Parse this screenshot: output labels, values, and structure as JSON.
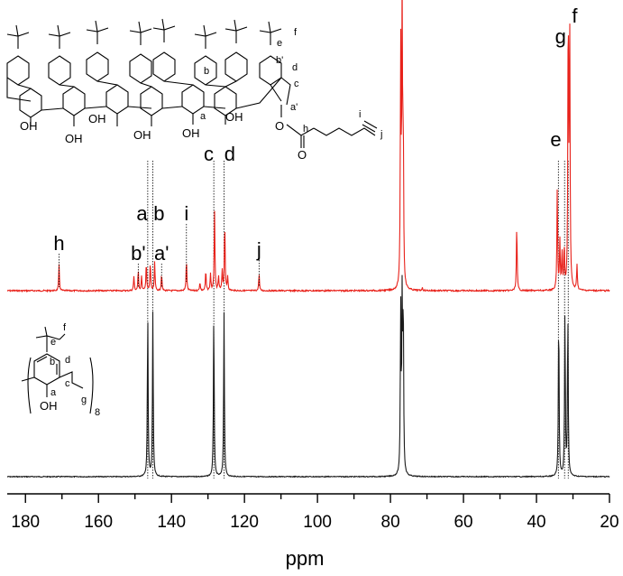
{
  "chart_data": {
    "type": "line",
    "title": "",
    "xlabel": "ppm",
    "ylabel": "",
    "xlim": [
      185,
      20
    ],
    "x_reversed": true,
    "x_ticks": [
      "180",
      "160",
      "140",
      "120",
      "100",
      "80",
      "60",
      "40",
      "20"
    ],
    "x_tick_values": [
      180,
      160,
      140,
      120,
      100,
      80,
      60,
      40,
      20
    ],
    "series": [
      {
        "color": "#e8211a",
        "peaks": [
          {
            "ppm": 170.8,
            "height": 0.09
          },
          {
            "ppm": 150.3,
            "height": 0.05
          },
          {
            "ppm": 149.1,
            "height": 0.07
          },
          {
            "ppm": 148.2,
            "height": 0.05
          },
          {
            "ppm": 146.9,
            "height": 0.1
          },
          {
            "ppm": 145.8,
            "height": 0.1
          },
          {
            "ppm": 144.6,
            "height": 0.1
          },
          {
            "ppm": 142.7,
            "height": 0.06
          },
          {
            "ppm": 135.9,
            "height": 0.11
          },
          {
            "ppm": 132.2,
            "height": 0.03
          },
          {
            "ppm": 130.6,
            "height": 0.07
          },
          {
            "ppm": 129.3,
            "height": 0.06
          },
          {
            "ppm": 128.2,
            "height": 0.28
          },
          {
            "ppm": 127.1,
            "height": 0.05
          },
          {
            "ppm": 126.1,
            "height": 0.07
          },
          {
            "ppm": 125.4,
            "height": 0.24
          },
          {
            "ppm": 124.6,
            "height": 0.05
          },
          {
            "ppm": 116.0,
            "height": 0.06
          },
          {
            "ppm": 77.2,
            "height": 0.83
          },
          {
            "ppm": 76.8,
            "height": 1.0
          },
          {
            "ppm": 76.5,
            "height": 0.5
          },
          {
            "ppm": 71.3,
            "height": 0.01
          },
          {
            "ppm": 45.4,
            "height": 0.23
          },
          {
            "ppm": 34.3,
            "height": 0.36
          },
          {
            "ppm": 33.6,
            "height": 0.17
          },
          {
            "ppm": 33.0,
            "height": 0.13
          },
          {
            "ppm": 32.4,
            "height": 0.15
          },
          {
            "ppm": 31.3,
            "height": 0.99
          },
          {
            "ppm": 30.9,
            "height": 0.92
          },
          {
            "ppm": 28.9,
            "height": 0.09
          }
        ]
      },
      {
        "color": "#1a1a1a",
        "peaks": [
          {
            "ppm": 146.5,
            "height": 0.52
          },
          {
            "ppm": 145.1,
            "height": 0.52
          },
          {
            "ppm": 128.4,
            "height": 0.52
          },
          {
            "ppm": 125.6,
            "height": 0.52
          },
          {
            "ppm": 77.2,
            "height": 0.52
          },
          {
            "ppm": 76.8,
            "height": 0.53
          },
          {
            "ppm": 76.5,
            "height": 0.52
          },
          {
            "ppm": 33.9,
            "height": 0.52
          },
          {
            "ppm": 32.2,
            "height": 0.52
          },
          {
            "ppm": 31.4,
            "height": 0.52
          }
        ]
      }
    ],
    "peak_labels": [
      {
        "text": "h",
        "ppm": 170.8
      },
      {
        "text": "b'",
        "ppm": 149.1
      },
      {
        "text": "a",
        "ppm": 146.6
      },
      {
        "text": "b",
        "ppm": 144.9
      },
      {
        "text": "a'",
        "ppm": 142.7
      },
      {
        "text": "i",
        "ppm": 135.9
      },
      {
        "text": "c",
        "ppm": 128.3
      },
      {
        "text": "d",
        "ppm": 125.5
      },
      {
        "text": "j",
        "ppm": 116.0
      },
      {
        "text": "e",
        "ppm": 34.2
      },
      {
        "text": "g",
        "ppm": 32.4
      },
      {
        "text": "f",
        "ppm": 31.0
      }
    ],
    "guide_lines_ppm": [
      146.5,
      145.1,
      128.4,
      125.6,
      34.0,
      32.3,
      31.3
    ],
    "grid": false,
    "legend": "none"
  },
  "structures": {
    "top": {
      "oh_labels": [
        "OH",
        "OH",
        "OH",
        "OH",
        "OH",
        "OH"
      ],
      "ring_labels": [
        "a",
        "b",
        "a'",
        "b'",
        "c",
        "d"
      ],
      "chain_labels": [
        "e",
        "f"
      ],
      "ester_labels": [
        "O",
        "h",
        "i",
        "j",
        "O"
      ]
    },
    "bottom": {
      "labels": [
        "f",
        "e",
        "b",
        "d",
        "c",
        "a",
        "g"
      ],
      "oh_label": "OH",
      "subscript": "8"
    }
  }
}
